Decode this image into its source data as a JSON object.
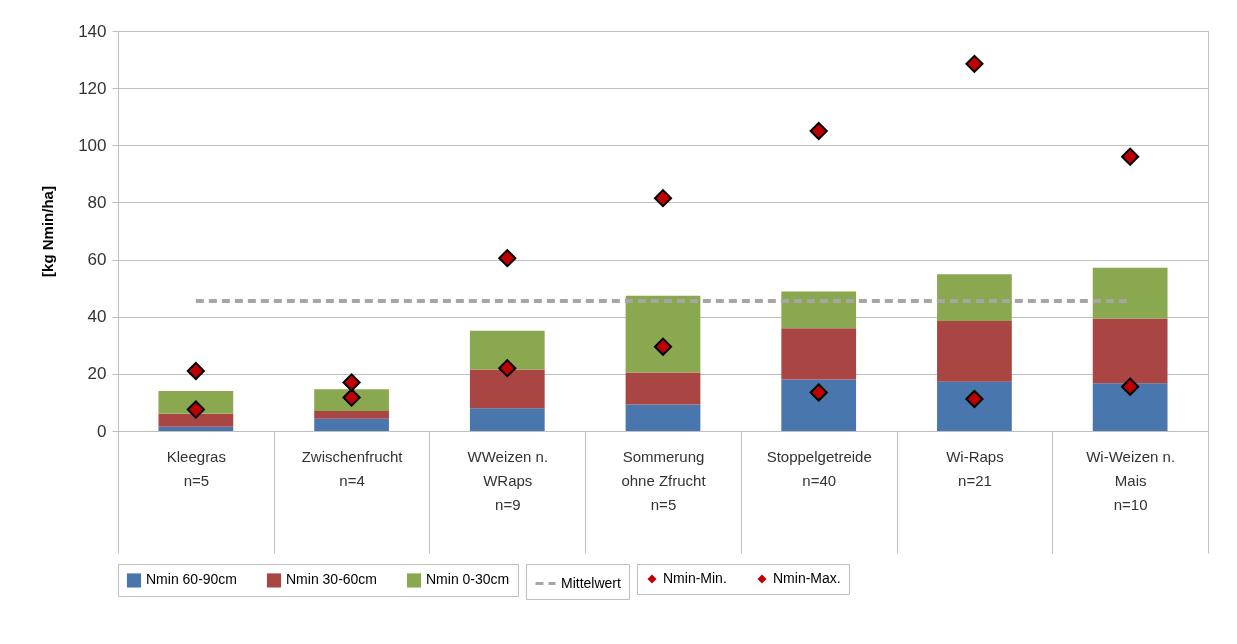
{
  "chart_data": {
    "type": "bar",
    "ylabel": "[kg Nmin/ha]",
    "categories": [
      "Kleegras\nn=5",
      "Zwischenfrucht\nn=4",
      "WWeizen n.\nWRaps\nn=9",
      "Sommerung\nohne Zfrucht\nn=5",
      "Stoppelgetreide\nn=40",
      "Wi-Raps\nn=21",
      "Wi-Weizen n.\nMais\nn=10"
    ],
    "series": [
      {
        "name": "Nmin 60-90cm",
        "color": "#4876ad",
        "values": [
          1.5,
          4.3,
          8,
          9.3,
          18,
          17.2,
          16.7
        ]
      },
      {
        "name": "Nmin 30-60cm",
        "color": "#a94643",
        "values": [
          4.5,
          2.7,
          13.5,
          11.2,
          18,
          21.3,
          22.7
        ]
      },
      {
        "name": "Nmin 0-30cm",
        "color": "#8aa84f",
        "values": [
          8,
          7.6,
          13.6,
          26.8,
          12.8,
          16.4,
          17.7
        ]
      },
      {
        "name": "Mittelwert",
        "type": "line",
        "color": "#a6a6a6",
        "line_style": "dashed",
        "marker": "none",
        "values": [
          45.5,
          45.5,
          45.5,
          45.5,
          45.5,
          45.5,
          45.5
        ]
      },
      {
        "name": "Nmin-Min.",
        "type": "scatter",
        "color": "#c00000",
        "marker": "diamond",
        "values": [
          7.5,
          11.7,
          22,
          29.5,
          13.5,
          11.2,
          15.5
        ]
      },
      {
        "name": "Nmin-Max.",
        "type": "scatter",
        "color": "#c00000",
        "marker": "diamond",
        "values": [
          21,
          17,
          60.5,
          81.5,
          105,
          128.5,
          96
        ]
      }
    ],
    "stacked": true,
    "ylim": [
      0,
      140
    ],
    "yticks": [
      0,
      20,
      40,
      60,
      80,
      100,
      120,
      140
    ],
    "grid": "y",
    "legend": "bottom"
  }
}
